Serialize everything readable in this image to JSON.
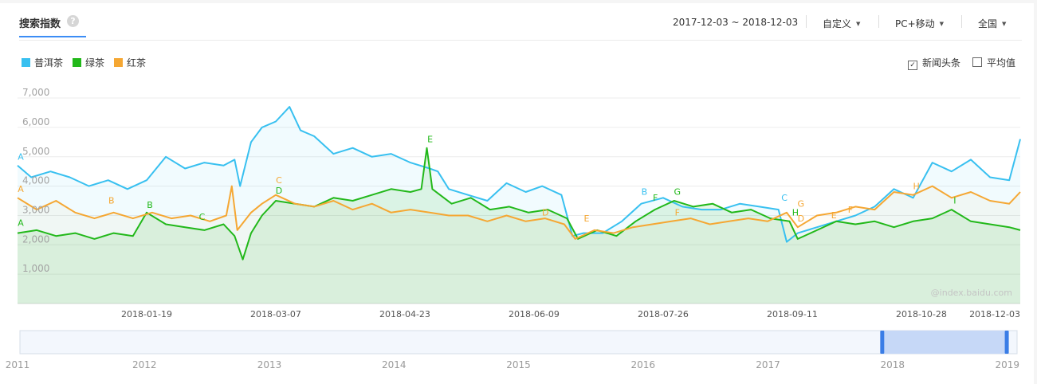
{
  "header": {
    "title": "搜索指数",
    "date_range": "2017-12-03 ~ 2018-12-03",
    "period": "自定义",
    "device": "PC+移动",
    "region": "全国"
  },
  "legend": [
    {
      "name": "普洱茶",
      "color": "#38c0f0"
    },
    {
      "name": "绿茶",
      "color": "#22b81a"
    },
    {
      "name": "红茶",
      "color": "#f5a733"
    }
  ],
  "options": {
    "news_headlines": {
      "label": "新闻头条",
      "checked": true
    },
    "average": {
      "label": "平均值",
      "checked": false
    }
  },
  "watermark": "@index.baidu.com",
  "chart_data": {
    "type": "line",
    "x_start": "2017-12-03",
    "x_end": "2018-12-03",
    "x_ticks": [
      "2018-01-19",
      "2018-03-07",
      "2018-04-23",
      "2018-06-09",
      "2018-07-26",
      "2018-09-11",
      "2018-10-28",
      "2018-12-03"
    ],
    "y_ticks": [
      1000,
      2000,
      3000,
      4000,
      5000,
      6000,
      7000
    ],
    "y_tick_labels": [
      "1,000",
      "2,000",
      "3,000",
      "4,000",
      "5,000",
      "6,000",
      "7,000"
    ],
    "ylim": [
      0,
      7300
    ],
    "grid": true,
    "legend_position": "top-left",
    "series": [
      {
        "name": "普洱茶",
        "color": "#38c0f0",
        "points": [
          [
            "2017-12-03",
            4700
          ],
          [
            "2017-12-08",
            4300
          ],
          [
            "2017-12-15",
            4500
          ],
          [
            "2017-12-22",
            4300
          ],
          [
            "2017-12-29",
            4000
          ],
          [
            "2018-01-05",
            4200
          ],
          [
            "2018-01-12",
            3900
          ],
          [
            "2018-01-19",
            4200
          ],
          [
            "2018-01-26",
            5000
          ],
          [
            "2018-02-02",
            4600
          ],
          [
            "2018-02-09",
            4800
          ],
          [
            "2018-02-16",
            4700
          ],
          [
            "2018-02-20",
            4900
          ],
          [
            "2018-02-22",
            4000
          ],
          [
            "2018-02-26",
            5500
          ],
          [
            "2018-03-02",
            6000
          ],
          [
            "2018-03-07",
            6200
          ],
          [
            "2018-03-12",
            6700
          ],
          [
            "2018-03-16",
            5900
          ],
          [
            "2018-03-21",
            5700
          ],
          [
            "2018-03-28",
            5100
          ],
          [
            "2018-04-04",
            5300
          ],
          [
            "2018-04-11",
            5000
          ],
          [
            "2018-04-18",
            5100
          ],
          [
            "2018-04-25",
            4800
          ],
          [
            "2018-05-02",
            4600
          ],
          [
            "2018-05-05",
            4500
          ],
          [
            "2018-05-09",
            3900
          ],
          [
            "2018-05-16",
            3700
          ],
          [
            "2018-05-23",
            3500
          ],
          [
            "2018-05-30",
            4100
          ],
          [
            "2018-06-06",
            3800
          ],
          [
            "2018-06-12",
            4000
          ],
          [
            "2018-06-19",
            3700
          ],
          [
            "2018-06-23",
            2300
          ],
          [
            "2018-06-27",
            2400
          ],
          [
            "2018-07-04",
            2400
          ],
          [
            "2018-07-11",
            2800
          ],
          [
            "2018-07-18",
            3400
          ],
          [
            "2018-07-26",
            3600
          ],
          [
            "2018-08-02",
            3300
          ],
          [
            "2018-08-09",
            3200
          ],
          [
            "2018-08-16",
            3200
          ],
          [
            "2018-08-23",
            3400
          ],
          [
            "2018-08-30",
            3300
          ],
          [
            "2018-09-06",
            3200
          ],
          [
            "2018-09-09",
            2100
          ],
          [
            "2018-09-13",
            2400
          ],
          [
            "2018-09-20",
            2600
          ],
          [
            "2018-09-27",
            2800
          ],
          [
            "2018-10-04",
            3000
          ],
          [
            "2018-10-11",
            3300
          ],
          [
            "2018-10-18",
            3900
          ],
          [
            "2018-10-25",
            3600
          ],
          [
            "2018-11-01",
            4800
          ],
          [
            "2018-11-08",
            4500
          ],
          [
            "2018-11-15",
            4900
          ],
          [
            "2018-11-22",
            4300
          ],
          [
            "2018-11-29",
            4200
          ],
          [
            "2018-12-03",
            5600
          ]
        ]
      },
      {
        "name": "绿茶",
        "color": "#22b81a",
        "points": [
          [
            "2017-12-03",
            2400
          ],
          [
            "2017-12-10",
            2500
          ],
          [
            "2017-12-17",
            2300
          ],
          [
            "2017-12-24",
            2400
          ],
          [
            "2017-12-31",
            2200
          ],
          [
            "2018-01-07",
            2400
          ],
          [
            "2018-01-14",
            2300
          ],
          [
            "2018-01-19",
            3100
          ],
          [
            "2018-01-26",
            2700
          ],
          [
            "2018-02-02",
            2600
          ],
          [
            "2018-02-09",
            2500
          ],
          [
            "2018-02-16",
            2700
          ],
          [
            "2018-02-20",
            2300
          ],
          [
            "2018-02-23",
            1500
          ],
          [
            "2018-02-26",
            2400
          ],
          [
            "2018-03-02",
            3000
          ],
          [
            "2018-03-07",
            3500
          ],
          [
            "2018-03-14",
            3400
          ],
          [
            "2018-03-21",
            3300
          ],
          [
            "2018-03-28",
            3600
          ],
          [
            "2018-04-04",
            3500
          ],
          [
            "2018-04-11",
            3700
          ],
          [
            "2018-04-18",
            3900
          ],
          [
            "2018-04-25",
            3800
          ],
          [
            "2018-04-29",
            3900
          ],
          [
            "2018-05-01",
            5300
          ],
          [
            "2018-05-03",
            3900
          ],
          [
            "2018-05-10",
            3400
          ],
          [
            "2018-05-17",
            3600
          ],
          [
            "2018-05-24",
            3200
          ],
          [
            "2018-05-31",
            3300
          ],
          [
            "2018-06-07",
            3100
          ],
          [
            "2018-06-14",
            3200
          ],
          [
            "2018-06-21",
            2900
          ],
          [
            "2018-06-25",
            2200
          ],
          [
            "2018-07-02",
            2500
          ],
          [
            "2018-07-09",
            2300
          ],
          [
            "2018-07-16",
            2800
          ],
          [
            "2018-07-23",
            3200
          ],
          [
            "2018-07-30",
            3500
          ],
          [
            "2018-08-06",
            3300
          ],
          [
            "2018-08-13",
            3400
          ],
          [
            "2018-08-20",
            3100
          ],
          [
            "2018-08-27",
            3200
          ],
          [
            "2018-09-03",
            2900
          ],
          [
            "2018-09-10",
            2800
          ],
          [
            "2018-09-13",
            2200
          ],
          [
            "2018-09-20",
            2500
          ],
          [
            "2018-09-27",
            2800
          ],
          [
            "2018-10-04",
            2700
          ],
          [
            "2018-10-11",
            2800
          ],
          [
            "2018-10-18",
            2600
          ],
          [
            "2018-10-25",
            2800
          ],
          [
            "2018-11-01",
            2900
          ],
          [
            "2018-11-08",
            3200
          ],
          [
            "2018-11-15",
            2800
          ],
          [
            "2018-11-22",
            2700
          ],
          [
            "2018-11-29",
            2600
          ],
          [
            "2018-12-03",
            2500
          ]
        ]
      },
      {
        "name": "红茶",
        "color": "#f5a733",
        "points": [
          [
            "2017-12-03",
            3600
          ],
          [
            "2017-12-10",
            3200
          ],
          [
            "2017-12-17",
            3500
          ],
          [
            "2017-12-24",
            3100
          ],
          [
            "2017-12-31",
            2900
          ],
          [
            "2018-01-07",
            3100
          ],
          [
            "2018-01-14",
            2900
          ],
          [
            "2018-01-21",
            3100
          ],
          [
            "2018-01-28",
            2900
          ],
          [
            "2018-02-04",
            3000
          ],
          [
            "2018-02-11",
            2800
          ],
          [
            "2018-02-17",
            3000
          ],
          [
            "2018-02-19",
            4000
          ],
          [
            "2018-02-21",
            2500
          ],
          [
            "2018-02-26",
            3100
          ],
          [
            "2018-03-02",
            3400
          ],
          [
            "2018-03-07",
            3700
          ],
          [
            "2018-03-14",
            3400
          ],
          [
            "2018-03-21",
            3300
          ],
          [
            "2018-03-28",
            3500
          ],
          [
            "2018-04-04",
            3200
          ],
          [
            "2018-04-11",
            3400
          ],
          [
            "2018-04-18",
            3100
          ],
          [
            "2018-04-25",
            3200
          ],
          [
            "2018-05-02",
            3100
          ],
          [
            "2018-05-09",
            3000
          ],
          [
            "2018-05-16",
            3000
          ],
          [
            "2018-05-23",
            2800
          ],
          [
            "2018-05-30",
            3000
          ],
          [
            "2018-06-06",
            2800
          ],
          [
            "2018-06-13",
            2900
          ],
          [
            "2018-06-20",
            2700
          ],
          [
            "2018-06-24",
            2200
          ],
          [
            "2018-07-01",
            2500
          ],
          [
            "2018-07-08",
            2400
          ],
          [
            "2018-07-15",
            2600
          ],
          [
            "2018-07-22",
            2700
          ],
          [
            "2018-07-29",
            2800
          ],
          [
            "2018-08-05",
            2900
          ],
          [
            "2018-08-12",
            2700
          ],
          [
            "2018-08-19",
            2800
          ],
          [
            "2018-08-26",
            2900
          ],
          [
            "2018-09-02",
            2800
          ],
          [
            "2018-09-09",
            3100
          ],
          [
            "2018-09-13",
            2600
          ],
          [
            "2018-09-20",
            3000
          ],
          [
            "2018-09-27",
            3100
          ],
          [
            "2018-10-04",
            3300
          ],
          [
            "2018-10-11",
            3200
          ],
          [
            "2018-10-18",
            3800
          ],
          [
            "2018-10-25",
            3700
          ],
          [
            "2018-11-01",
            4000
          ],
          [
            "2018-11-08",
            3600
          ],
          [
            "2018-11-15",
            3800
          ],
          [
            "2018-11-22",
            3500
          ],
          [
            "2018-11-29",
            3400
          ],
          [
            "2018-12-03",
            3800
          ]
        ]
      }
    ],
    "annotations": [
      {
        "series": "普洱茶",
        "label": "A",
        "x": "2017-12-03",
        "y": 4900
      },
      {
        "series": "普洱茶",
        "label": "B",
        "x": "2018-07-18",
        "y": 3700
      },
      {
        "series": "普洱茶",
        "label": "C",
        "x": "2018-09-07",
        "y": 3500
      },
      {
        "series": "绿茶",
        "label": "A",
        "x": "2017-12-03",
        "y": 2650
      },
      {
        "series": "绿茶",
        "label": "B",
        "x": "2018-01-19",
        "y": 3250
      },
      {
        "series": "绿茶",
        "label": "C",
        "x": "2018-02-07",
        "y": 2850
      },
      {
        "series": "绿茶",
        "label": "D",
        "x": "2018-03-07",
        "y": 3750
      },
      {
        "series": "绿茶",
        "label": "E",
        "x": "2018-05-01",
        "y": 5500
      },
      {
        "series": "绿茶",
        "label": "F",
        "x": "2018-07-22",
        "y": 3500
      },
      {
        "series": "绿茶",
        "label": "G",
        "x": "2018-07-30",
        "y": 3700
      },
      {
        "series": "绿茶",
        "label": "H",
        "x": "2018-09-11",
        "y": 3000
      },
      {
        "series": "绿茶",
        "label": "I",
        "x": "2018-11-08",
        "y": 3400
      },
      {
        "series": "红茶",
        "label": "A",
        "x": "2017-12-03",
        "y": 3800
      },
      {
        "series": "红茶",
        "label": "B",
        "x": "2018-01-05",
        "y": 3400
      },
      {
        "series": "红茶",
        "label": "C",
        "x": "2018-03-07",
        "y": 4100
      },
      {
        "series": "红茶",
        "label": "D",
        "x": "2018-06-12",
        "y": 3000
      },
      {
        "series": "红茶",
        "label": "E",
        "x": "2018-06-27",
        "y": 2800
      },
      {
        "series": "红茶",
        "label": "F",
        "x": "2018-07-30",
        "y": 3000
      },
      {
        "series": "红茶",
        "label": "G",
        "x": "2018-09-13",
        "y": 3300
      },
      {
        "series": "红茶",
        "label": "D",
        "x": "2018-09-13",
        "y": 2800
      },
      {
        "series": "红茶",
        "label": "E",
        "x": "2018-09-25",
        "y": 2900
      },
      {
        "series": "红茶",
        "label": "F",
        "x": "2018-10-01",
        "y": 3100
      },
      {
        "series": "红茶",
        "label": "H",
        "x": "2018-10-25",
        "y": 3900
      }
    ]
  },
  "timeline": {
    "year_labels": [
      "2011",
      "2012",
      "2013",
      "2014",
      "2015",
      "2016",
      "2017",
      "2018",
      "2019"
    ],
    "selected_range": [
      "2017-12-03",
      "2018-12-03"
    ]
  }
}
